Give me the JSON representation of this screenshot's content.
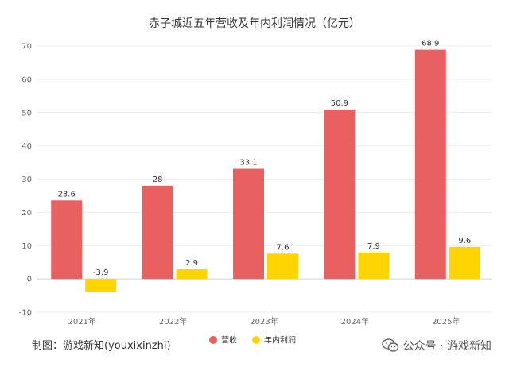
{
  "chart_data": {
    "type": "bar",
    "title": "赤子城近五年营收及年内利润情况（亿元）",
    "categories": [
      "2021年",
      "2022年",
      "2023年",
      "2024年",
      "2025年"
    ],
    "series": [
      {
        "name": "营收",
        "color": "#e86060",
        "values": [
          23.6,
          28,
          33.1,
          50.9,
          68.9
        ],
        "labels": [
          "23.6",
          "28",
          "33.1",
          "50.9",
          "68.9"
        ]
      },
      {
        "name": "年内利润",
        "color": "#ffd400",
        "values": [
          -3.9,
          2.9,
          7.6,
          7.9,
          9.6
        ],
        "labels": [
          "-3.9",
          "2.9",
          "7.6",
          "7.9",
          "9.6"
        ]
      }
    ],
    "ylim": [
      -10,
      70
    ],
    "yticks": [
      "-10",
      "0",
      "10",
      "20",
      "30",
      "40",
      "50",
      "60",
      "70"
    ],
    "grid": true,
    "legend_position": "bottom-center"
  },
  "footer": {
    "credit": "制图：游戏新知(youxixinzhi)",
    "watermark": "公众号 · 游戏新知",
    "watermark_icon": "wechat-icon"
  }
}
